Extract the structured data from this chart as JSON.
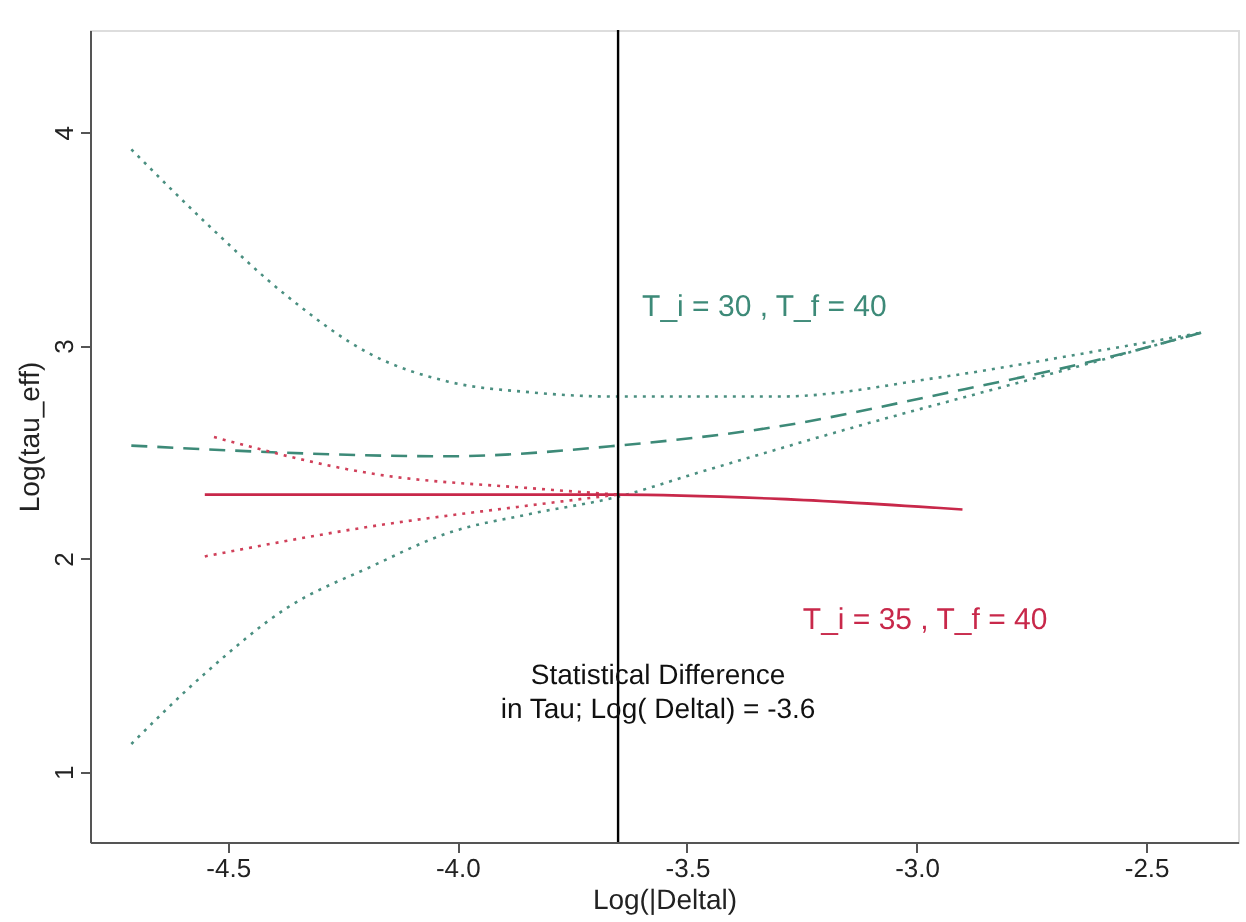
{
  "chart_data": {
    "type": "line",
    "xlabel": "Log(|Deltal)",
    "ylabel": "Log(tau_eff)",
    "xlim": [
      -4.8,
      -2.3
    ],
    "ylim": [
      0.67,
      4.48
    ],
    "xticks": [
      -4.5,
      {
        "value": -4.0,
        "label": "-4.0"
      },
      -3.5,
      {
        "value": -3.0,
        "label": "-3.0"
      },
      -2.5
    ],
    "yticks": [
      1,
      2,
      3,
      4
    ],
    "grid": false,
    "legend": false,
    "marker": "none",
    "series": [
      {
        "color": "#4a8f80",
        "line_style": "dotted",
        "x": [
          -4.71,
          -4.55,
          -4.37,
          -4.19,
          -4.02,
          -3.84,
          -3.66,
          -3.3,
          -2.95,
          -2.59,
          -2.38
        ],
        "values": [
          3.92,
          3.58,
          3.23,
          2.96,
          2.83,
          2.78,
          2.76,
          2.76,
          2.85,
          2.98,
          3.06
        ]
      },
      {
        "name": "T_i = 30 , T_f = 40",
        "color": "#3d8a78",
        "line_style": "dashed",
        "x": [
          -4.71,
          -4.02,
          -3.65,
          -3.3,
          -2.95,
          -2.59,
          -2.38
        ],
        "values": [
          2.53,
          2.48,
          2.53,
          2.62,
          2.77,
          2.94,
          3.06
        ]
      },
      {
        "color": "#4a8f80",
        "line_style": "dotted",
        "x": [
          -4.71,
          -4.55,
          -4.37,
          -4.19,
          -4.02,
          -3.84,
          -3.65,
          -3.48,
          -3.13,
          -2.77,
          -2.38
        ],
        "values": [
          1.13,
          1.46,
          1.77,
          1.96,
          2.12,
          2.21,
          2.29,
          2.4,
          2.62,
          2.83,
          3.06
        ]
      },
      {
        "color": "#d0405a",
        "line_style": "dotted",
        "x": [
          -4.53,
          -4.19,
          -3.84,
          -3.65
        ],
        "values": [
          2.57,
          2.4,
          2.33,
          2.3
        ]
      },
      {
        "name": "T_i = 35 , T_f = 40",
        "color": "#c8284a",
        "line_style": "solid",
        "x": [
          -4.55,
          -3.65,
          -3.3,
          -2.9
        ],
        "values": [
          2.3,
          2.3,
          2.28,
          2.23
        ]
      },
      {
        "color": "#d0405a",
        "line_style": "dotted",
        "x": [
          -4.55,
          -4.19,
          -3.84,
          -3.65
        ],
        "values": [
          2.01,
          2.15,
          2.25,
          2.3
        ]
      }
    ],
    "ref_lines": [
      {
        "axis": "x",
        "value": -3.65,
        "color": "#000000"
      }
    ],
    "annotations": [
      "Statistical Difference",
      "in Tau; Log( Deltal) =  -3.6"
    ]
  }
}
